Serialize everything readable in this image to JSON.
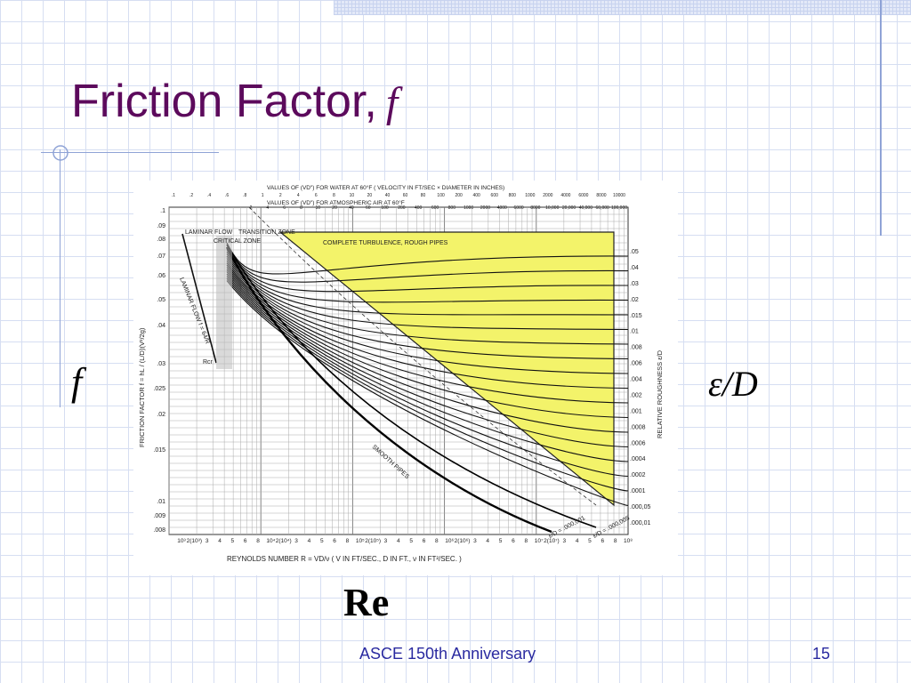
{
  "slide": {
    "title": "Friction Factor,",
    "title_symbol": "f",
    "label_f": "f",
    "label_eps": "ε/D",
    "label_re": "Re",
    "footer": "ASCE 150th Anniversary",
    "page_number": "15",
    "colors": {
      "title": "#5c0a5c",
      "footer": "#2a2aa0",
      "grid": "#d6def2",
      "accent_rule": "#8fa3d6",
      "turbulence_zone": "#f3f36a"
    }
  },
  "moody": {
    "y_axis_label": "FRICTION FACTOR f = hL / (L/D)(V²/2g)",
    "y_ticks": [
      ".1",
      ".09",
      ".08",
      ".07",
      ".06",
      ".05",
      ".04",
      ".03",
      ".025",
      ".02",
      ".015",
      ".01",
      ".009",
      ".008"
    ],
    "right_label": "RELATIVE ROUGHNESS ε/D",
    "right_ticks": [
      ".05",
      ".04",
      ".03",
      ".02",
      ".015",
      ".01",
      ".008",
      ".006",
      ".004",
      ".002",
      ".001",
      ".0008",
      ".0006",
      ".0004",
      ".0002",
      ".0001",
      ".000,05",
      ".000,01"
    ],
    "x_axis_label": "REYNOLDS NUMBER R = VD/ν  ( V IN FT/SEC., D IN FT., ν IN FT²/SEC. )",
    "x_ticks": [
      "10³",
      "2(10³)",
      "3",
      "4",
      "5",
      "6",
      "8",
      "10⁴",
      "2(10⁴)",
      "3",
      "4",
      "5",
      "6",
      "8",
      "10⁵",
      "2(10⁵)",
      "3",
      "4",
      "5",
      "6",
      "8",
      "10⁶",
      "2(10⁶)",
      "3",
      "4",
      "5",
      "6",
      "8",
      "10⁷",
      "2(10⁷)",
      "3",
      "4",
      "5",
      "6",
      "8",
      "10⁸"
    ],
    "top_label_1": "VALUES OF (VD\") FOR WATER AT 60°F ( VELOCITY IN FT/SEC × DIAMETER IN INCHES)",
    "top_ticks_1": [
      ".1",
      ".2",
      ".4",
      ".6",
      ".8",
      "1",
      "2",
      "4",
      "6",
      "8",
      "10",
      "20",
      "40",
      "60",
      "80",
      "100",
      "200",
      "400",
      "600",
      "800",
      "1000",
      "2000",
      "4000",
      "6000",
      "8000",
      "10000"
    ],
    "top_label_2": "VALUES OF (VD\") FOR ATMOSPHERIC AIR AT 60°F",
    "top_ticks_2": [
      "2",
      "4",
      "6",
      "8",
      "10",
      "20",
      "40",
      "60",
      "100",
      "200",
      "400",
      "600",
      "800",
      "1000",
      "2000",
      "4000",
      "6000",
      "8000",
      "10,000",
      "20,000",
      "40,000",
      "60,000",
      "100,000"
    ],
    "zone_labels": [
      "LAMINAR FLOW",
      "CRITICAL ZONE",
      "TRANSITION ZONE"
    ],
    "turbulence_label": "COMPLETE TURBULENCE, ROUGH PIPES",
    "laminar_label": "LAMINAR FLOW f = 64/R",
    "rcr_label": "Rcr",
    "smooth_label": "SMOOTH PIPES",
    "bottom_curve_labels": [
      "ε/D = .000,001",
      "ε/D = .000,005"
    ]
  }
}
